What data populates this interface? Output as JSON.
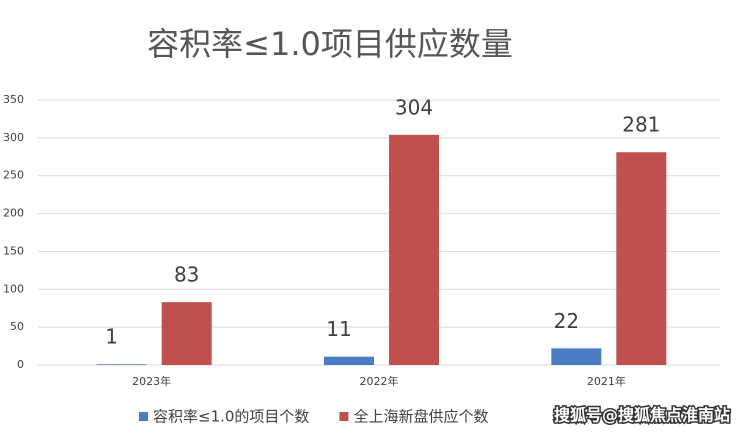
{
  "chart_data": {
    "type": "bar",
    "title": "容积率≤1.0项目供应数量",
    "categories": [
      "2023年",
      "2022年",
      "2021年"
    ],
    "series": [
      {
        "name": "容积率≤1.0的项目个数",
        "color": "#4a7cc4",
        "values": [
          1,
          11,
          22
        ]
      },
      {
        "name": "全上海新盘供应个数",
        "color": "#c0504d",
        "values": [
          83,
          304,
          281
        ]
      }
    ],
    "ylim": [
      0,
      350
    ],
    "yticks": [
      0,
      50,
      100,
      150,
      200,
      250,
      300,
      350
    ],
    "grid": true,
    "legend": "bottom",
    "watermark": "搜狐号@搜狐焦点淮南站"
  }
}
